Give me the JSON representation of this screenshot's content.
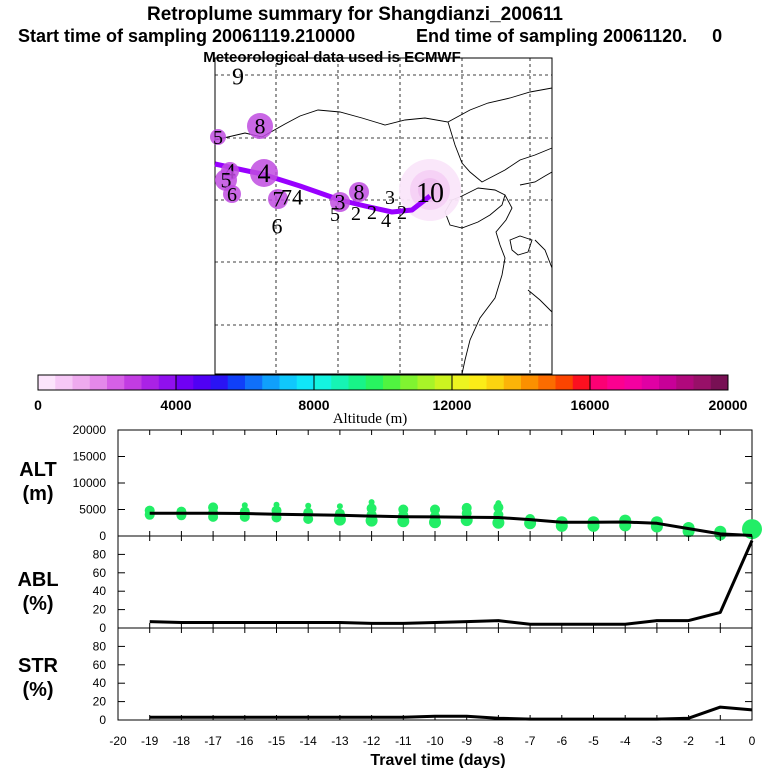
{
  "title": "Retroplume summary for Shangdianzi_200611",
  "subtitle_start": "Start time of sampling 20061119.210000",
  "subtitle_end": "End time of sampling 20061120.     0",
  "met_line": "Meteorological data used is ECMWF",
  "colors": {
    "track": "#9900ff",
    "alt_points": "#22ee66",
    "lines": "#000000"
  },
  "map": {
    "day_labels": [
      {
        "text": "9",
        "kind": "label"
      },
      {
        "text": "8",
        "kind": "circle"
      },
      {
        "text": "5",
        "kind": "circle"
      },
      {
        "text": "4",
        "kind": "circle"
      },
      {
        "text": "5",
        "kind": "circle"
      },
      {
        "text": "6",
        "kind": "circle"
      },
      {
        "text": "4",
        "kind": "circle"
      },
      {
        "text": "7",
        "kind": "circle"
      },
      {
        "text": "74",
        "kind": "label"
      },
      {
        "text": "6",
        "kind": "label"
      },
      {
        "text": "8",
        "kind": "circle"
      },
      {
        "text": "3",
        "kind": "circle"
      },
      {
        "text": "5",
        "kind": "label"
      },
      {
        "text": "2",
        "kind": "label"
      },
      {
        "text": "3",
        "kind": "label"
      },
      {
        "text": "2",
        "kind": "label"
      },
      {
        "text": "4",
        "kind": "label"
      },
      {
        "text": "2",
        "kind": "label"
      },
      {
        "text": "10",
        "kind": "origin"
      }
    ]
  },
  "colorbar": {
    "label": "Altitude (m)",
    "ticks": [
      "0",
      "4000",
      "8000",
      "12000",
      "16000",
      "20000"
    ],
    "colors": [
      "#fce4fc",
      "#f6c8f6",
      "#eeaaee",
      "#e488ea",
      "#d660e6",
      "#c23ce2",
      "#aa22e6",
      "#9010ee",
      "#7000f4",
      "#5000f4",
      "#2a14f4",
      "#1040f8",
      "#1070fa",
      "#10a0fc",
      "#10c8fc",
      "#10e6f8",
      "#14f4e0",
      "#16f4b4",
      "#18f488",
      "#28f460",
      "#50f440",
      "#80f430",
      "#a8f428",
      "#ccf420",
      "#ecf420",
      "#fcec18",
      "#fcd410",
      "#fcb408",
      "#fc9000",
      "#fc6c00",
      "#fc4400",
      "#fc1020",
      "#fc0074",
      "#fc0090",
      "#f400a0",
      "#e000a4",
      "#c80098",
      "#b0087c",
      "#981068",
      "#781054"
    ]
  },
  "chart_data": [
    {
      "type": "scatter",
      "name": "ALT",
      "ylabel": "ALT\n(m)",
      "ylabel_lines": [
        "ALT",
        "(m)"
      ],
      "ylim": [
        0,
        20000
      ],
      "yticks": [
        0,
        5000,
        10000,
        15000,
        20000
      ],
      "ytick_labels": [
        "0",
        "5000",
        "10000",
        "15000",
        "20000"
      ],
      "points": [
        {
          "x": -19,
          "y": 4800
        },
        {
          "x": -19,
          "y": 4000
        },
        {
          "x": -18,
          "y": 4600
        },
        {
          "x": -18,
          "y": 3900
        },
        {
          "x": -17,
          "y": 5400
        },
        {
          "x": -17,
          "y": 4400
        },
        {
          "x": -17,
          "y": 3600
        },
        {
          "x": -16,
          "y": 5800
        },
        {
          "x": -16,
          "y": 4600
        },
        {
          "x": -16,
          "y": 3600
        },
        {
          "x": -15,
          "y": 5900
        },
        {
          "x": -15,
          "y": 4800
        },
        {
          "x": -15,
          "y": 3500
        },
        {
          "x": -14,
          "y": 5700
        },
        {
          "x": -14,
          "y": 4400
        },
        {
          "x": -14,
          "y": 3200
        },
        {
          "x": -13,
          "y": 5600
        },
        {
          "x": -13,
          "y": 4200
        },
        {
          "x": -13,
          "y": 3100
        },
        {
          "x": -12,
          "y": 6400
        },
        {
          "x": -12,
          "y": 5200
        },
        {
          "x": -12,
          "y": 4000
        },
        {
          "x": -12,
          "y": 2900
        },
        {
          "x": -11,
          "y": 5000
        },
        {
          "x": -11,
          "y": 3900
        },
        {
          "x": -11,
          "y": 2800
        },
        {
          "x": -10,
          "y": 5000
        },
        {
          "x": -10,
          "y": 3700
        },
        {
          "x": -10,
          "y": 2600
        },
        {
          "x": -9,
          "y": 5300
        },
        {
          "x": -9,
          "y": 4300
        },
        {
          "x": -9,
          "y": 3000
        },
        {
          "x": -8,
          "y": 6200
        },
        {
          "x": -8,
          "y": 5400
        },
        {
          "x": -8,
          "y": 4000
        },
        {
          "x": -8,
          "y": 2500
        },
        {
          "x": -7,
          "y": 3200
        },
        {
          "x": -7,
          "y": 2400
        },
        {
          "x": -6,
          "y": 2600
        },
        {
          "x": -6,
          "y": 1900
        },
        {
          "x": -5,
          "y": 2600
        },
        {
          "x": -5,
          "y": 1900
        },
        {
          "x": -4,
          "y": 2900
        },
        {
          "x": -4,
          "y": 2000
        },
        {
          "x": -3,
          "y": 2600
        },
        {
          "x": -3,
          "y": 1800
        },
        {
          "x": -2,
          "y": 1500
        },
        {
          "x": -2,
          "y": 900
        },
        {
          "x": -1,
          "y": 800
        },
        {
          "x": -1,
          "y": 300
        },
        {
          "x": 0,
          "y": 1300
        }
      ],
      "line": {
        "x": [
          -19,
          -18,
          -17,
          -16,
          -15,
          -14,
          -13,
          -12,
          -11,
          -10,
          -9,
          -8,
          -7,
          -6,
          -5,
          -4,
          -3,
          -2,
          -1,
          0
        ],
        "y": [
          4300,
          4300,
          4300,
          4250,
          4100,
          4000,
          3900,
          3750,
          3650,
          3600,
          3550,
          3500,
          3100,
          2600,
          2600,
          2650,
          2400,
          1400,
          400,
          100
        ]
      }
    },
    {
      "type": "line",
      "name": "ABL",
      "ylabel": "ABL\n(%)",
      "ylabel_lines": [
        "ABL",
        "(%)"
      ],
      "ylim": [
        0,
        100
      ],
      "yticks": [
        0,
        20,
        40,
        60,
        80
      ],
      "ytick_labels": [
        "0",
        "20",
        "40",
        "60",
        "80"
      ],
      "x": [
        -19,
        -18,
        -17,
        -16,
        -15,
        -14,
        -13,
        -12,
        -11,
        -10,
        -9,
        -8,
        -7,
        -6,
        -5,
        -4,
        -3,
        -2,
        -1,
        0
      ],
      "y": [
        7,
        6,
        6,
        6,
        6,
        6,
        6,
        5,
        5,
        6,
        7,
        8,
        4,
        4,
        4,
        4,
        8,
        8,
        17,
        95
      ]
    },
    {
      "type": "line",
      "name": "STR",
      "ylabel": "STR\n(%)",
      "ylabel_lines": [
        "STR",
        "(%)"
      ],
      "ylim": [
        0,
        100
      ],
      "yticks": [
        0,
        20,
        40,
        60,
        80
      ],
      "ytick_labels": [
        "0",
        "20",
        "40",
        "60",
        "80"
      ],
      "x": [
        -19,
        -18,
        -17,
        -16,
        -15,
        -14,
        -13,
        -12,
        -11,
        -10,
        -9,
        -8,
        -7,
        -6,
        -5,
        -4,
        -3,
        -2,
        -1,
        0
      ],
      "y": [
        3,
        3,
        3,
        3,
        3,
        3,
        3,
        3,
        3,
        4,
        4,
        2,
        1,
        1,
        1,
        1,
        1,
        2,
        14,
        11
      ],
      "xlabel": "Travel time (days)",
      "xticks": [
        -20,
        -19,
        -18,
        -17,
        -16,
        -15,
        -14,
        -13,
        -12,
        -11,
        -10,
        -9,
        -8,
        -7,
        -6,
        -5,
        -4,
        -3,
        -2,
        -1,
        0
      ],
      "xtick_labels": [
        "-20",
        "-19",
        "-18",
        "-17",
        "-16",
        "-15",
        "-14",
        "-13",
        "-12",
        "-11",
        "-10",
        "-9",
        "-8",
        "-7",
        "-6",
        "-5",
        "-4",
        "-3",
        "-2",
        "-1",
        "0"
      ],
      "xlim": [
        -20,
        0
      ]
    }
  ]
}
